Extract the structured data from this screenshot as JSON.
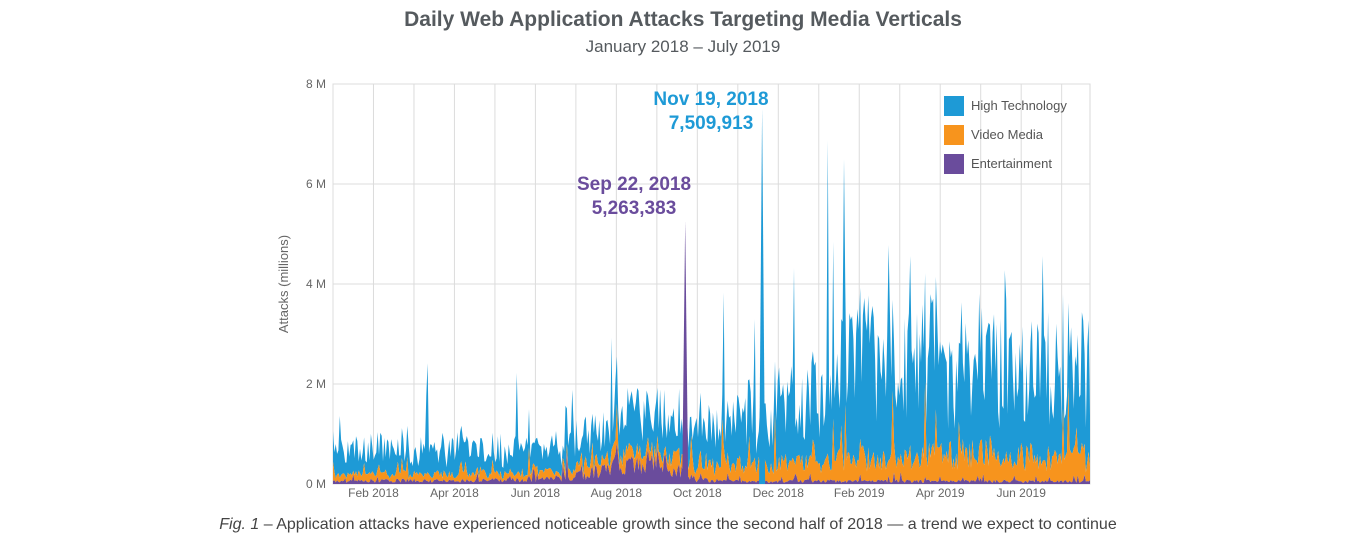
{
  "title": "Daily Web Application Attacks Targeting Media Verticals",
  "subtitle": "January 2018 – July 2019",
  "caption": {
    "prefix": "Fig. 1",
    "text": " – Application attacks have experienced noticeable growth since the second half of 2018 — a trend we expect to continue"
  },
  "chart_data": {
    "type": "area",
    "stacked": true,
    "title": "Daily Web Application Attacks Targeting Media Verticals",
    "subtitle": "January 2018 – July 2019",
    "ylabel": "Attacks (millions)",
    "xlabel": "",
    "ylim": [
      0,
      8
    ],
    "y_ticks": [
      0,
      2,
      4,
      6,
      8
    ],
    "y_tick_labels": [
      "0 M",
      "2 M",
      "4 M",
      "6 M",
      "8 M"
    ],
    "x_tick_labels": [
      "Feb 2018",
      "Apr 2018",
      "Jun 2018",
      "Aug 2018",
      "Oct 2018",
      "Dec 2018",
      "Feb 2019",
      "Apr 2019",
      "Jun 2019"
    ],
    "x_tick_month_index": [
      1,
      3,
      5,
      7,
      9,
      11,
      13,
      15,
      17
    ],
    "x_range_months": [
      0,
      18.7
    ],
    "grid": true,
    "legend_position": "top-right",
    "series": [
      {
        "name": "Entertainment",
        "color": "#6a4c9c",
        "values_millions": [
          0.05,
          0.06,
          0.07,
          0.06,
          0.08,
          0.08,
          0.15,
          0.35,
          0.45,
          0.08,
          0.06,
          0.05,
          0.06,
          0.05,
          0.06,
          0.05,
          0.06,
          0.05,
          0.05
        ]
      },
      {
        "name": "Video Media",
        "color": "#f7941d",
        "values_millions": [
          0.12,
          0.13,
          0.13,
          0.12,
          0.13,
          0.14,
          0.18,
          0.22,
          0.2,
          0.3,
          0.3,
          0.35,
          0.35,
          0.45,
          0.42,
          0.5,
          0.55,
          0.5,
          0.45
        ]
      },
      {
        "name": "High Technology",
        "color": "#1e9ad6",
        "values_millions": [
          0.5,
          0.5,
          0.45,
          0.45,
          0.5,
          0.5,
          0.55,
          0.75,
          0.8,
          0.7,
          0.9,
          1.1,
          1.3,
          1.9,
          1.8,
          1.8,
          1.9,
          1.7,
          1.6
        ]
      }
    ],
    "series_x": "month index (0 = Jan 2018)",
    "annotations": [
      {
        "label_date": "Sep 22, 2018",
        "label_value": "5,263,383",
        "series": "Entertainment",
        "month_index": 8.7,
        "value_millions": 5.263383
      },
      {
        "label_date": "Nov 19, 2018",
        "label_value": "7,509,913",
        "series": "High Technology",
        "month_index": 10.6,
        "value_millions": 7.509913
      }
    ]
  }
}
